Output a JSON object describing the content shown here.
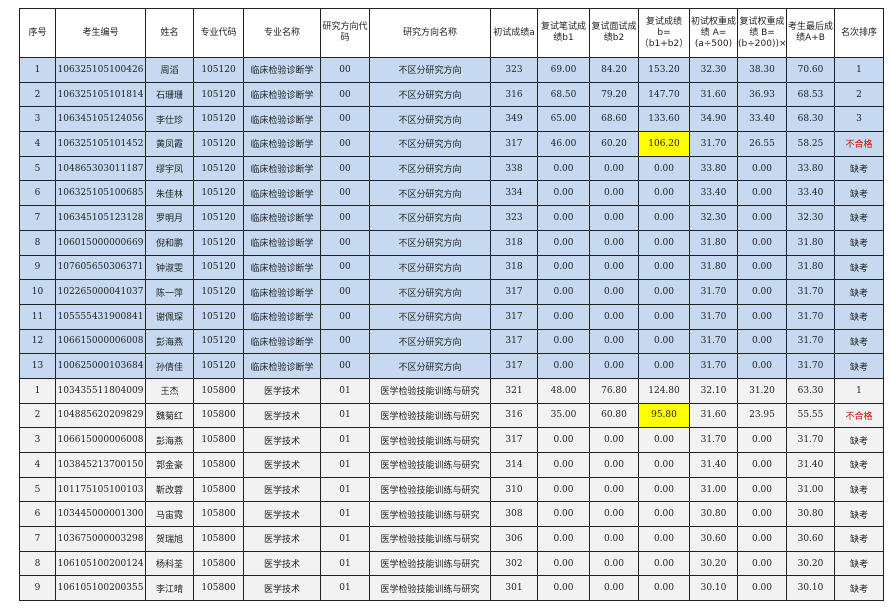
{
  "colors": {
    "group1_bg": "#c6d9f0",
    "group2_bg": "#f2f2f2",
    "highlight": "#ffff00",
    "fail_text": "#e00000"
  },
  "headers": [
    "序号",
    "考生编号",
    "姓名",
    "专业代码",
    "专业名称",
    "研究方向代码",
    "研究方向名称",
    "初试成绩a",
    "复试笔试成绩b1",
    "复试面试成绩b2",
    "复试成绩 b=（b1+b2）",
    "初试权重成绩 A=(a÷500)",
    "复试权重成绩 B=(b÷200))×",
    "考生最后成绩A+B",
    "名次排序"
  ],
  "rows": [
    {
      "group": 0,
      "cells": [
        "1",
        "106325105100426",
        "周滔",
        "105120",
        "临床检验诊断学",
        "00",
        "不区分研究方向",
        "323",
        "69.00",
        "84.20",
        "153.20",
        "32.30",
        "38.30",
        "70.60",
        "1"
      ]
    },
    {
      "group": 0,
      "cells": [
        "2",
        "106325105101814",
        "石珊珊",
        "105120",
        "临床检验诊断学",
        "00",
        "不区分研究方向",
        "316",
        "68.50",
        "79.20",
        "147.70",
        "31.60",
        "36.93",
        "68.53",
        "2"
      ]
    },
    {
      "group": 0,
      "cells": [
        "3",
        "106345105124056",
        "李仕珍",
        "105120",
        "临床检验诊断学",
        "00",
        "不区分研究方向",
        "349",
        "65.00",
        "68.60",
        "133.60",
        "34.90",
        "33.40",
        "68.30",
        "3"
      ]
    },
    {
      "group": 0,
      "highlight": true,
      "fail": true,
      "cells": [
        "4",
        "106325105101452",
        "黄凤霞",
        "105120",
        "临床检验诊断学",
        "00",
        "不区分研究方向",
        "317",
        "46.00",
        "60.20",
        "106.20",
        "31.70",
        "26.55",
        "58.25",
        "不合格"
      ]
    },
    {
      "group": 0,
      "cells": [
        "5",
        "104865303011187",
        "缪宇凤",
        "105120",
        "临床检验诊断学",
        "00",
        "不区分研究方向",
        "338",
        "0.00",
        "0.00",
        "0.00",
        "33.80",
        "0.00",
        "33.80",
        "缺考"
      ]
    },
    {
      "group": 0,
      "cells": [
        "6",
        "106325105100685",
        "朱佳林",
        "105120",
        "临床检验诊断学",
        "00",
        "不区分研究方向",
        "334",
        "0.00",
        "0.00",
        "0.00",
        "33.40",
        "0.00",
        "33.40",
        "缺考"
      ]
    },
    {
      "group": 0,
      "cells": [
        "7",
        "106345105123128",
        "罗明月",
        "105120",
        "临床检验诊断学",
        "00",
        "不区分研究方向",
        "323",
        "0.00",
        "0.00",
        "0.00",
        "32.30",
        "0.00",
        "32.30",
        "缺考"
      ]
    },
    {
      "group": 0,
      "cells": [
        "8",
        "106015000000669",
        "倪和鹏",
        "105120",
        "临床检验诊断学",
        "00",
        "不区分研究方向",
        "318",
        "0.00",
        "0.00",
        "0.00",
        "31.80",
        "0.00",
        "31.80",
        "缺考"
      ]
    },
    {
      "group": 0,
      "cells": [
        "9",
        "107605650306371",
        "钟淑雯",
        "105120",
        "临床检验诊断学",
        "00",
        "不区分研究方向",
        "318",
        "0.00",
        "0.00",
        "0.00",
        "31.80",
        "0.00",
        "31.80",
        "缺考"
      ]
    },
    {
      "group": 0,
      "cells": [
        "10",
        "102265000041037",
        "陈一萍",
        "105120",
        "临床检验诊断学",
        "00",
        "不区分研究方向",
        "317",
        "0.00",
        "0.00",
        "0.00",
        "31.70",
        "0.00",
        "31.70",
        "缺考"
      ]
    },
    {
      "group": 0,
      "cells": [
        "11",
        "105555431900841",
        "谢佩琛",
        "105120",
        "临床检验诊断学",
        "00",
        "不区分研究方向",
        "317",
        "0.00",
        "0.00",
        "0.00",
        "31.70",
        "0.00",
        "31.70",
        "缺考"
      ]
    },
    {
      "group": 0,
      "cells": [
        "12",
        "106615000006008",
        "彭海燕",
        "105120",
        "临床检验诊断学",
        "00",
        "不区分研究方向",
        "317",
        "0.00",
        "0.00",
        "0.00",
        "31.70",
        "0.00",
        "31.70",
        "缺考"
      ]
    },
    {
      "group": 0,
      "cells": [
        "13",
        "100625000103684",
        "孙倩佳",
        "105120",
        "临床检验诊断学",
        "00",
        "不区分研究方向",
        "317",
        "0.00",
        "0.00",
        "0.00",
        "31.70",
        "0.00",
        "31.70",
        "缺考"
      ]
    },
    {
      "group": 1,
      "cells": [
        "1",
        "103435511804009",
        "王杰",
        "105800",
        "医学技术",
        "01",
        "医学检验技能训练与研究",
        "321",
        "48.00",
        "76.80",
        "124.80",
        "32.10",
        "31.20",
        "63.30",
        "1"
      ]
    },
    {
      "group": 1,
      "highlight": true,
      "fail": true,
      "cells": [
        "2",
        "104885620209829",
        "魏菊红",
        "105800",
        "医学技术",
        "01",
        "医学检验技能训练与研究",
        "316",
        "35.00",
        "60.80",
        "95.80",
        "31.60",
        "23.95",
        "55.55",
        "不合格"
      ]
    },
    {
      "group": 1,
      "cells": [
        "3",
        "106615000006008",
        "彭海燕",
        "105800",
        "医学技术",
        "01",
        "医学检验技能训练与研究",
        "317",
        "0.00",
        "0.00",
        "0.00",
        "31.70",
        "0.00",
        "31.70",
        "缺考"
      ]
    },
    {
      "group": 1,
      "cells": [
        "4",
        "103845213700150",
        "郭金豪",
        "105800",
        "医学技术",
        "01",
        "医学检验技能训练与研究",
        "314",
        "0.00",
        "0.00",
        "0.00",
        "31.40",
        "0.00",
        "31.40",
        "缺考"
      ]
    },
    {
      "group": 1,
      "cells": [
        "5",
        "101175105100103",
        "靳改蓉",
        "105800",
        "医学技术",
        "01",
        "医学检验技能训练与研究",
        "310",
        "0.00",
        "0.00",
        "0.00",
        "31.00",
        "0.00",
        "31.00",
        "缺考"
      ]
    },
    {
      "group": 1,
      "cells": [
        "6",
        "103445000001300",
        "马宙霓",
        "105800",
        "医学技术",
        "01",
        "医学检验技能训练与研究",
        "308",
        "0.00",
        "0.00",
        "0.00",
        "30.80",
        "0.00",
        "30.80",
        "缺考"
      ]
    },
    {
      "group": 1,
      "cells": [
        "7",
        "103675000003298",
        "贺瑞旭",
        "105800",
        "医学技术",
        "01",
        "医学检验技能训练与研究",
        "306",
        "0.00",
        "0.00",
        "0.00",
        "30.60",
        "0.00",
        "30.60",
        "缺考"
      ]
    },
    {
      "group": 1,
      "cells": [
        "8",
        "106105100200124",
        "杨科荃",
        "105800",
        "医学技术",
        "01",
        "医学检验技能训练与研究",
        "302",
        "0.00",
        "0.00",
        "0.00",
        "30.20",
        "0.00",
        "30.20",
        "缺考"
      ]
    },
    {
      "group": 1,
      "cells": [
        "9",
        "106105100200355",
        "李江晴",
        "105800",
        "医学技术",
        "01",
        "医学检验技能训练与研究",
        "301",
        "0.00",
        "0.00",
        "0.00",
        "30.10",
        "0.00",
        "30.10",
        "缺考"
      ]
    }
  ]
}
